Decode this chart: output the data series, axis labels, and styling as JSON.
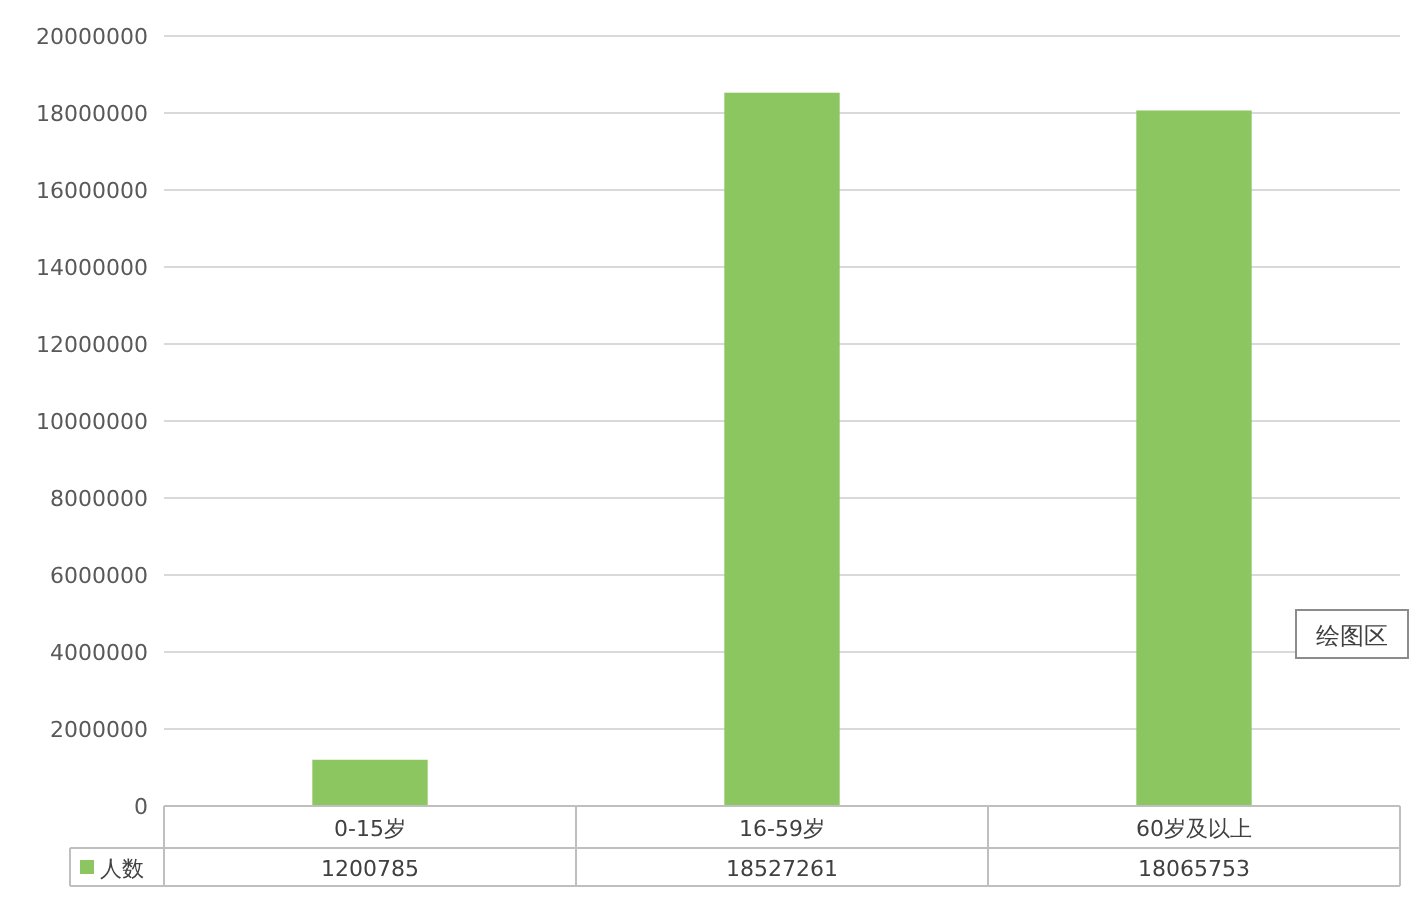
{
  "chart_data": {
    "type": "bar",
    "categories": [
      "0-15岁",
      "16-59岁",
      "60岁及以上"
    ],
    "series": [
      {
        "name": "人数",
        "color": "#8cc660",
        "values": [
          1200785,
          18527261,
          18065753
        ]
      }
    ],
    "ylim": [
      0,
      20000000
    ],
    "yticks": [
      0,
      2000000,
      4000000,
      6000000,
      8000000,
      10000000,
      12000000,
      14000000,
      16000000,
      18000000,
      20000000
    ],
    "grid": "y",
    "legend": "bottom",
    "data_labels": true,
    "annotations": [
      "绘图区"
    ]
  }
}
